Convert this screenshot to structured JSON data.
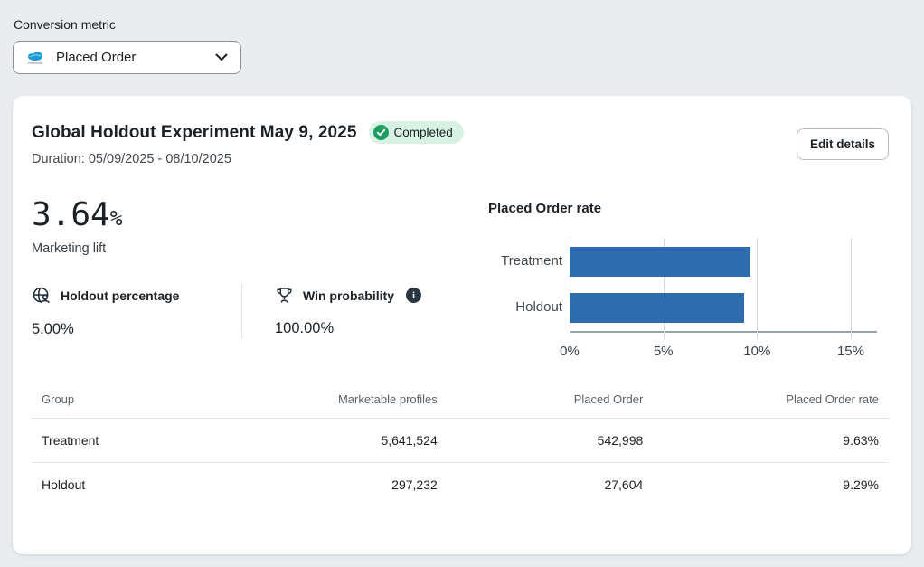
{
  "page": {
    "conversion_metric_label": "Conversion metric",
    "dropdown_value": "Placed Order"
  },
  "card": {
    "title": "Global Holdout Experiment May 9, 2025",
    "status_badge": "Completed",
    "edit_button": "Edit details",
    "duration": "Duration: 05/09/2025 - 08/10/2025",
    "lift": {
      "value": "3.64",
      "unit": "%",
      "label": "Marketing lift"
    },
    "stats": [
      {
        "icon": "globe-person-icon",
        "label": "Holdout percentage",
        "value": "5.00%"
      },
      {
        "icon": "trophy-icon",
        "label": "Win probability",
        "value": "100.00%",
        "info_icon": "info-icon",
        "info_glyph": "i"
      }
    ]
  },
  "chart_data": {
    "type": "bar",
    "orientation": "horizontal",
    "title": "Placed Order rate",
    "categories": [
      "Treatment",
      "Holdout"
    ],
    "values": [
      9.63,
      9.29
    ],
    "value_unit": "%",
    "xlim": [
      0,
      16.4
    ],
    "xtick_values": [
      0,
      5,
      10,
      15
    ],
    "xticks": [
      "0%",
      "5%",
      "10%",
      "15%"
    ],
    "bar_color": "#2e6cae",
    "grid": true,
    "legend": false
  },
  "table": {
    "columns": [
      "Group",
      "Marketable profiles",
      "Placed Order",
      "Placed Order rate"
    ],
    "rows": [
      [
        "Treatment",
        "5,641,524",
        "542,998",
        "9.63%"
      ],
      [
        "Holdout",
        "297,232",
        "27,604",
        "9.29%"
      ]
    ]
  },
  "colors": {
    "page_bg": "#e9edef",
    "card_bg": "#ffffff",
    "bar_blue": "#2e6cae",
    "badge_bg": "#d7f2e3",
    "badge_green": "#1e9c62",
    "text_dark": "#1c2126",
    "text_gray": "#42484e",
    "axis_gray": "#9aa1a8",
    "gridline_gray": "#d6dade",
    "divider_gray": "#e3e6e9"
  }
}
